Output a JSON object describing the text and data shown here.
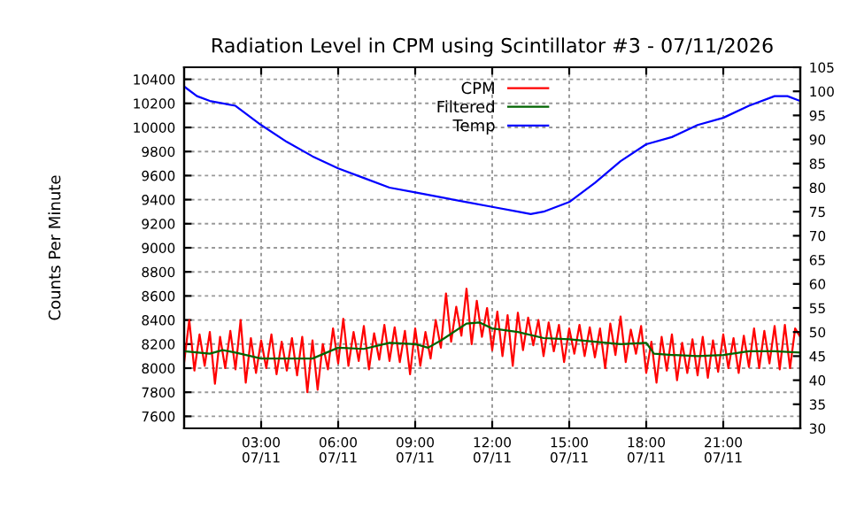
{
  "chart_data": {
    "type": "line",
    "title": "Radiation Level in CPM using Scintillator #3 - 07/11/2026",
    "ylabel": "Counts Per Minute",
    "xlim": [
      "2026-07-11T00:00",
      "2026-07-12T00:00"
    ],
    "xticks": [
      {
        "value": "2026-07-11T03:00",
        "label": "03:00\n07/11"
      },
      {
        "value": "2026-07-11T06:00",
        "label": "06:00\n07/11"
      },
      {
        "value": "2026-07-11T09:00",
        "label": "09:00\n07/11"
      },
      {
        "value": "2026-07-11T12:00",
        "label": "12:00\n07/11"
      },
      {
        "value": "2026-07-11T15:00",
        "label": "15:00\n07/11"
      },
      {
        "value": "2026-07-11T18:00",
        "label": "18:00\n07/11"
      },
      {
        "value": "2026-07-11T21:00",
        "label": "21:00\n07/11"
      }
    ],
    "ylim": [
      7500,
      10500
    ],
    "yticks": [
      7600,
      7800,
      8000,
      8200,
      8400,
      8600,
      8800,
      9000,
      9200,
      9400,
      9600,
      9800,
      10000,
      10200,
      10400
    ],
    "y2lim": [
      30,
      105
    ],
    "y2ticks": [
      30,
      35,
      40,
      45,
      50,
      55,
      60,
      65,
      70,
      75,
      80,
      85,
      90,
      95,
      100,
      105
    ],
    "grid": true,
    "legend": "top",
    "series": [
      {
        "name": "CPM",
        "color": "#ff0000",
        "x": [
          "2026-07-11T00:00",
          "2026-07-11T00:12",
          "2026-07-11T00:24",
          "2026-07-11T00:36",
          "2026-07-11T00:48",
          "2026-07-11T01:00",
          "2026-07-11T01:12",
          "2026-07-11T01:24",
          "2026-07-11T01:36",
          "2026-07-11T01:48",
          "2026-07-11T02:00",
          "2026-07-11T02:12",
          "2026-07-11T02:24",
          "2026-07-11T02:36",
          "2026-07-11T02:48",
          "2026-07-11T03:00",
          "2026-07-11T03:12",
          "2026-07-11T03:24",
          "2026-07-11T03:36",
          "2026-07-11T03:48",
          "2026-07-11T04:00",
          "2026-07-11T04:12",
          "2026-07-11T04:24",
          "2026-07-11T04:36",
          "2026-07-11T04:48",
          "2026-07-11T05:00",
          "2026-07-11T05:12",
          "2026-07-11T05:24",
          "2026-07-11T05:36",
          "2026-07-11T05:48",
          "2026-07-11T06:00",
          "2026-07-11T06:12",
          "2026-07-11T06:24",
          "2026-07-11T06:36",
          "2026-07-11T06:48",
          "2026-07-11T07:00",
          "2026-07-11T07:12",
          "2026-07-11T07:24",
          "2026-07-11T07:36",
          "2026-07-11T07:48",
          "2026-07-11T08:00",
          "2026-07-11T08:12",
          "2026-07-11T08:24",
          "2026-07-11T08:36",
          "2026-07-11T08:48",
          "2026-07-11T09:00",
          "2026-07-11T09:12",
          "2026-07-11T09:24",
          "2026-07-11T09:36",
          "2026-07-11T09:48",
          "2026-07-11T10:00",
          "2026-07-11T10:12",
          "2026-07-11T10:24",
          "2026-07-11T10:36",
          "2026-07-11T10:48",
          "2026-07-11T11:00",
          "2026-07-11T11:12",
          "2026-07-11T11:24",
          "2026-07-11T11:36",
          "2026-07-11T11:48",
          "2026-07-11T12:00",
          "2026-07-11T12:12",
          "2026-07-11T12:24",
          "2026-07-11T12:36",
          "2026-07-11T12:48",
          "2026-07-11T13:00",
          "2026-07-11T13:12",
          "2026-07-11T13:24",
          "2026-07-11T13:36",
          "2026-07-11T13:48",
          "2026-07-11T14:00",
          "2026-07-11T14:12",
          "2026-07-11T14:24",
          "2026-07-11T14:36",
          "2026-07-11T14:48",
          "2026-07-11T15:00",
          "2026-07-11T15:12",
          "2026-07-11T15:24",
          "2026-07-11T15:36",
          "2026-07-11T15:48",
          "2026-07-11T16:00",
          "2026-07-11T16:12",
          "2026-07-11T16:24",
          "2026-07-11T16:36",
          "2026-07-11T16:48",
          "2026-07-11T17:00",
          "2026-07-11T17:12",
          "2026-07-11T17:24",
          "2026-07-11T17:36",
          "2026-07-11T17:48",
          "2026-07-11T18:00",
          "2026-07-11T18:12",
          "2026-07-11T18:24",
          "2026-07-11T18:36",
          "2026-07-11T18:48",
          "2026-07-11T19:00",
          "2026-07-11T19:12",
          "2026-07-11T19:24",
          "2026-07-11T19:36",
          "2026-07-11T19:48",
          "2026-07-11T20:00",
          "2026-07-11T20:12",
          "2026-07-11T20:24",
          "2026-07-11T20:36",
          "2026-07-11T20:48",
          "2026-07-11T21:00",
          "2026-07-11T21:12",
          "2026-07-11T21:24",
          "2026-07-11T21:36",
          "2026-07-11T21:48",
          "2026-07-11T22:00",
          "2026-07-11T22:12",
          "2026-07-11T22:24",
          "2026-07-11T22:36",
          "2026-07-11T22:48",
          "2026-07-11T23:00",
          "2026-07-11T23:12",
          "2026-07-11T23:24",
          "2026-07-11T23:36",
          "2026-07-11T23:48",
          "2026-07-12T00:00"
        ],
        "values": [
          8050,
          8400,
          7980,
          8280,
          8020,
          8300,
          7870,
          8260,
          8000,
          8310,
          7990,
          8400,
          7880,
          8250,
          7960,
          8230,
          8000,
          8280,
          7950,
          8220,
          7980,
          8250,
          7940,
          8260,
          7800,
          8230,
          7820,
          8200,
          7990,
          8330,
          8040,
          8410,
          8020,
          8300,
          8060,
          8350,
          7990,
          8290,
          8070,
          8360,
          8060,
          8340,
          8050,
          8310,
          7950,
          8330,
          8020,
          8300,
          8080,
          8400,
          8170,
          8620,
          8220,
          8510,
          8270,
          8660,
          8200,
          8560,
          8260,
          8500,
          8150,
          8470,
          8100,
          8440,
          8020,
          8460,
          8150,
          8420,
          8190,
          8400,
          8100,
          8380,
          8140,
          8360,
          8050,
          8330,
          8120,
          8360,
          8100,
          8340,
          8090,
          8330,
          8000,
          8370,
          8110,
          8430,
          8050,
          8320,
          8120,
          8350,
          7960,
          8220,
          7880,
          8260,
          7980,
          8280,
          7900,
          8210,
          7960,
          8240,
          7940,
          8260,
          7920,
          8230,
          7970,
          8280,
          8000,
          8250,
          7960,
          8270,
          8010,
          8330,
          8000,
          8310,
          8040,
          8350,
          7990,
          8360,
          8000,
          8330,
          8260
        ]
      },
      {
        "name": "Filtered",
        "color": "#006400",
        "x": [
          "2026-07-11T00:00",
          "2026-07-11T01:00",
          "2026-07-11T01:30",
          "2026-07-11T02:00",
          "2026-07-11T03:00",
          "2026-07-11T05:00",
          "2026-07-11T06:00",
          "2026-07-11T07:00",
          "2026-07-11T08:00",
          "2026-07-11T09:00",
          "2026-07-11T09:30",
          "2026-07-11T10:00",
          "2026-07-11T11:00",
          "2026-07-11T11:30",
          "2026-07-11T12:00",
          "2026-07-11T13:00",
          "2026-07-11T14:00",
          "2026-07-11T15:00",
          "2026-07-11T16:00",
          "2026-07-11T17:00",
          "2026-07-11T18:00",
          "2026-07-11T18:18",
          "2026-07-11T19:00",
          "2026-07-11T20:00",
          "2026-07-11T21:00",
          "2026-07-11T22:00",
          "2026-07-11T23:00",
          "2026-07-12T00:00"
        ],
        "values": [
          8140,
          8120,
          8150,
          8130,
          8080,
          8080,
          8170,
          8160,
          8210,
          8200,
          8170,
          8230,
          8370,
          8380,
          8330,
          8300,
          8250,
          8240,
          8220,
          8200,
          8210,
          8120,
          8110,
          8100,
          8110,
          8140,
          8140,
          8130
        ]
      },
      {
        "name": "Temp",
        "color": "#0000ff",
        "axis": "y2",
        "x": [
          "2026-07-11T00:00",
          "2026-07-11T00:30",
          "2026-07-11T01:00",
          "2026-07-11T02:00",
          "2026-07-11T03:00",
          "2026-07-11T04:00",
          "2026-07-11T05:00",
          "2026-07-11T06:00",
          "2026-07-11T07:00",
          "2026-07-11T08:00",
          "2026-07-11T09:00",
          "2026-07-11T10:00",
          "2026-07-11T11:00",
          "2026-07-11T12:00",
          "2026-07-11T13:00",
          "2026-07-11T13:30",
          "2026-07-11T14:00",
          "2026-07-11T15:00",
          "2026-07-11T16:00",
          "2026-07-11T17:00",
          "2026-07-11T18:00",
          "2026-07-11T19:00",
          "2026-07-11T20:00",
          "2026-07-11T21:00",
          "2026-07-11T22:00",
          "2026-07-11T23:00",
          "2026-07-11T23:30",
          "2026-07-12T00:00"
        ],
        "values": [
          101,
          99,
          98,
          97,
          93,
          89.5,
          86.5,
          84,
          82,
          80,
          79,
          78,
          77,
          76,
          75,
          74.5,
          75,
          77,
          81,
          85.5,
          89,
          90.5,
          93,
          94.5,
          97,
          99,
          99,
          98
        ]
      }
    ]
  }
}
